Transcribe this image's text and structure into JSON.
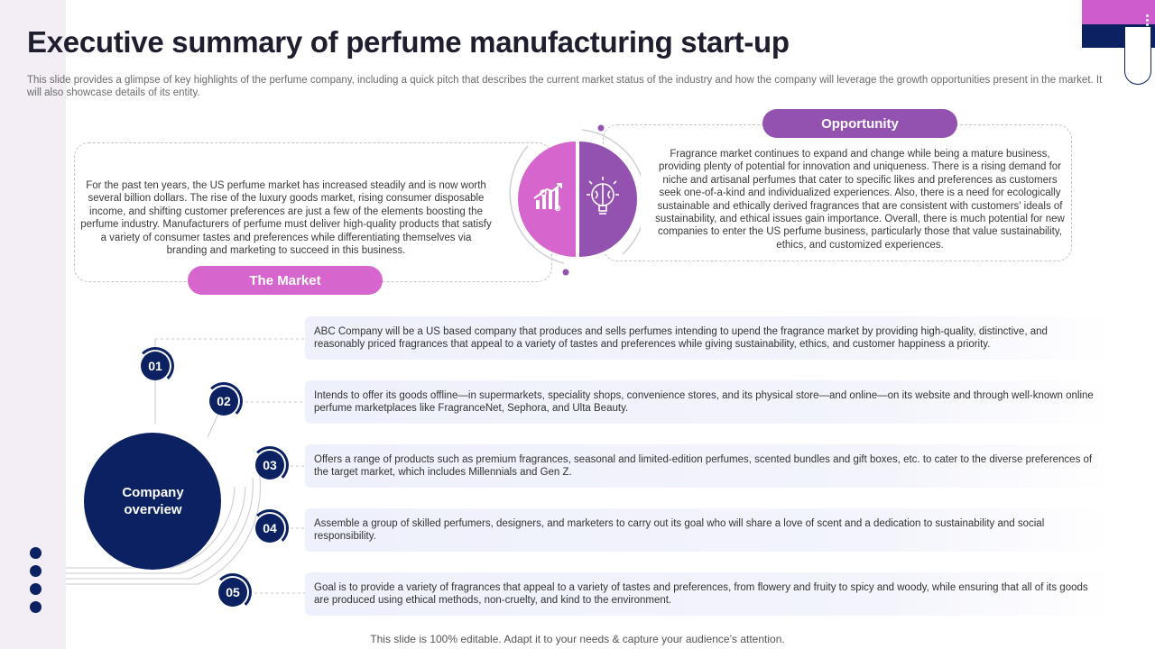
{
  "title": "Executive summary of perfume manufacturing start-up",
  "subtitle": "This slide provides a glimpse of key highlights of the perfume company, including a quick pitch that describes the current market status of the industry and how the company will leverage the growth opportunities present in the market. It will also showcase details of its entity.",
  "market": {
    "label": "The Market",
    "text": "For the past ten years, the US perfume market has increased steadily and is now worth several billion dollars. The rise of the luxury goods market, rising consumer disposable income, and shifting customer preferences are just a few of the elements boosting the perfume industry. Manufacturers of perfume must deliver high-quality products that satisfy a variety of consumer tastes and preferences while differentiating themselves via branding and marketing to succeed in this business.",
    "icon": "growth-chart-icon"
  },
  "opportunity": {
    "label": "Opportunity",
    "text": "Fragrance market continues to expand and change while being a mature business, providing plenty of potential for innovation and uniqueness. There is a rising demand for niche and artisanal perfumes that cater to specific likes and preferences as customers seek one-of-a-kind and individualized experiences. Also, there is a need for ecologically sustainable and ethically derived fragrances that are consistent with customers' ideals of sustainability, and ethical issues gain importance. Overall, there is much potential for new companies to enter the US perfume business, particularly those that value sustainability, ethics, and customized experiences.",
    "icon": "brain-lightbulb-icon"
  },
  "company": {
    "label_line1": "Company",
    "label_line2": "overview",
    "items": [
      {
        "num": "01",
        "text": "ABC Company will be a US based company that produces and sells perfumes intending to upend the fragrance market by providing high-quality, distinctive, and reasonably priced fragrances that appeal to a variety  of tastes and preferences while giving sustainability, ethics, and customer happiness a priority."
      },
      {
        "num": "02",
        "text": "Intends to offer its goods offline—in supermarkets, speciality shops, convenience stores, and its physical store—and online—on its website and through well-known online perfume marketplaces like FragranceNet, Sephora, and Ulta Beauty."
      },
      {
        "num": "03",
        "text": "Offers a range of products such as premium fragrances, seasonal and limited-edition perfumes, scented bundles and gift boxes, etc. to cater to the diverse preferences of the target market, which includes Millennials and Gen Z."
      },
      {
        "num": "04",
        "text": "Assemble a group of skilled perfumers, designers, and marketers to carry out its goal who will share a love of scent and a dedication to sustainability and social responsibility."
      },
      {
        "num": "05",
        "text": "Goal is to provide a variety of fragrances that appeal to a variety of tastes and preferences, from flowery and fruity to spicy and woody, while ensuring that all of its goods are produced using ethical methods, non-cruelty, and kind to the environment."
      }
    ]
  },
  "footer": "This slide is 100% editable. Adapt it to your needs & capture your audience’s attention.",
  "colors": {
    "navy": "#0b2161",
    "pink": "#d665cd",
    "purple": "#9452b0"
  }
}
